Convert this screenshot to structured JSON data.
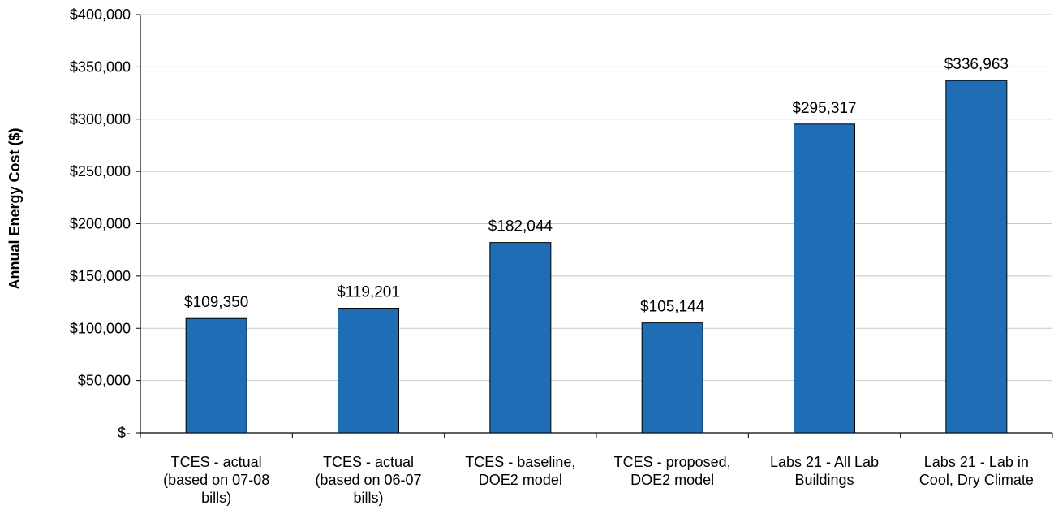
{
  "chart_data": {
    "type": "bar",
    "title": "",
    "xlabel": "",
    "ylabel": "Annual Energy Cost ($)",
    "ylim": [
      0,
      400000
    ],
    "yticks": [
      0,
      50000,
      100000,
      150000,
      200000,
      250000,
      300000,
      350000,
      400000
    ],
    "ytick_labels": [
      "$-",
      "$50,000",
      "$100,000",
      "$150,000",
      "$200,000",
      "$250,000",
      "$300,000",
      "$350,000",
      "$400,000"
    ],
    "categories": [
      [
        "TCES - actual",
        "(based on 07-08",
        "bills)"
      ],
      [
        "TCES - actual",
        "(based on 06-07",
        "bills)"
      ],
      [
        "TCES - baseline,",
        "DOE2 model"
      ],
      [
        "TCES - proposed,",
        "DOE2 model"
      ],
      [
        "Labs 21 - All Lab",
        "Buildings"
      ],
      [
        "Labs 21 - Lab in",
        "Cool, Dry Climate"
      ]
    ],
    "values": [
      109350,
      119201,
      182044,
      105144,
      295317,
      336963
    ],
    "data_labels": [
      "$109,350",
      "$119,201",
      "$182,044",
      "$105,144",
      "$295,317",
      "$336,963"
    ],
    "bar_color": "#1f6db5",
    "grid": true,
    "legend": "none"
  }
}
